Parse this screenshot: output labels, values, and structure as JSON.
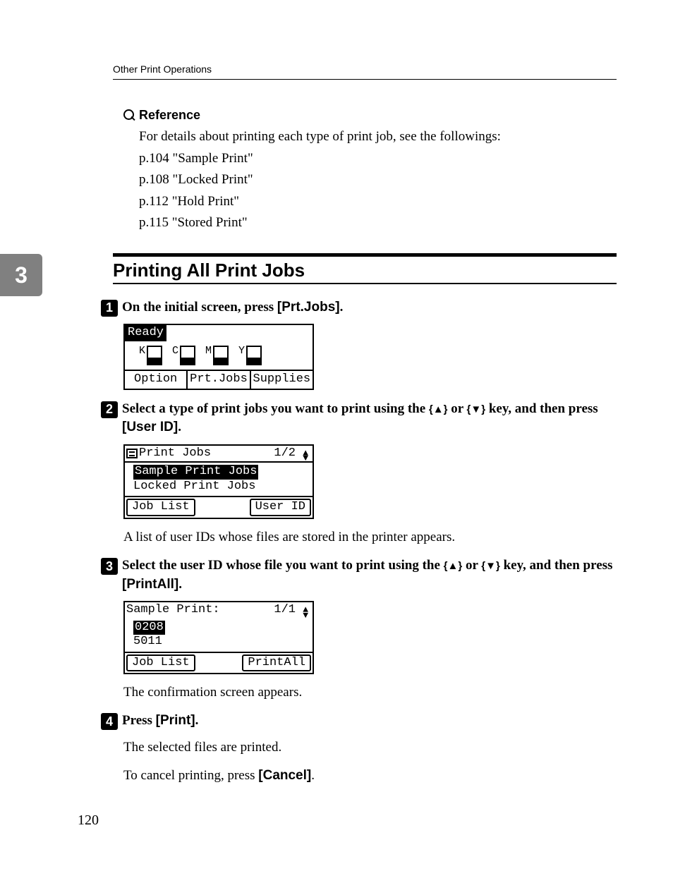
{
  "header": {
    "running": "Other Print Operations"
  },
  "chapter": {
    "num": "3"
  },
  "reference": {
    "label": "Reference",
    "intro": "For details about printing each type of print job, see the followings:",
    "items": [
      "p.104 \"Sample Print\"",
      "p.108 \"Locked Print\"",
      "p.112 \"Hold Print\"",
      "p.115 \"Stored Print\""
    ]
  },
  "section": {
    "title": "Printing All Print Jobs"
  },
  "steps": {
    "s1": {
      "num": "1",
      "pre": "On the initial screen, press ",
      "key": "[Prt.Jobs]",
      "post": "."
    },
    "s2": {
      "num": "2",
      "pre": "Select a type of print jobs you want to print using the ",
      "mid": " or ",
      "post": " key, and then press ",
      "key": "[User ID]",
      "tail": ".",
      "body": "A list of user IDs whose files are stored in the printer appears."
    },
    "s3": {
      "num": "3",
      "pre": "Select the user ID whose file you want to print using the ",
      "mid": " or ",
      "post": " key, and then press ",
      "key": "[PrintAll]",
      "tail": ".",
      "body": "The confirmation screen appears."
    },
    "s4": {
      "num": "4",
      "pre": "Press ",
      "key": "[Print]",
      "post": ".",
      "body1": "The selected files are printed.",
      "body2_pre": "To cancel printing, press ",
      "body2_key": "[Cancel]",
      "body2_post": "."
    }
  },
  "lcd1": {
    "title": "Ready",
    "toners": [
      "K",
      "C",
      "M",
      "Y"
    ],
    "keys": [
      "Option",
      "Prt.Jobs",
      "Supplies"
    ]
  },
  "lcd2": {
    "title": "Print Jobs",
    "page": "1/2",
    "item_sel": "Sample Print Jobs",
    "item2": "Locked Print Jobs",
    "k_left": "Job List",
    "k_right": "User ID"
  },
  "lcd3": {
    "title": "Sample Print:",
    "page": "1/1",
    "item_sel": "0208",
    "item2": "5011",
    "k_left": "Job List",
    "k_right": "PrintAll"
  },
  "footer": {
    "pagenum": "120"
  },
  "glyphs": {
    "up": "▲",
    "down": "▼",
    "keycap_up": "{▲}",
    "keycap_down": "{▼}"
  }
}
